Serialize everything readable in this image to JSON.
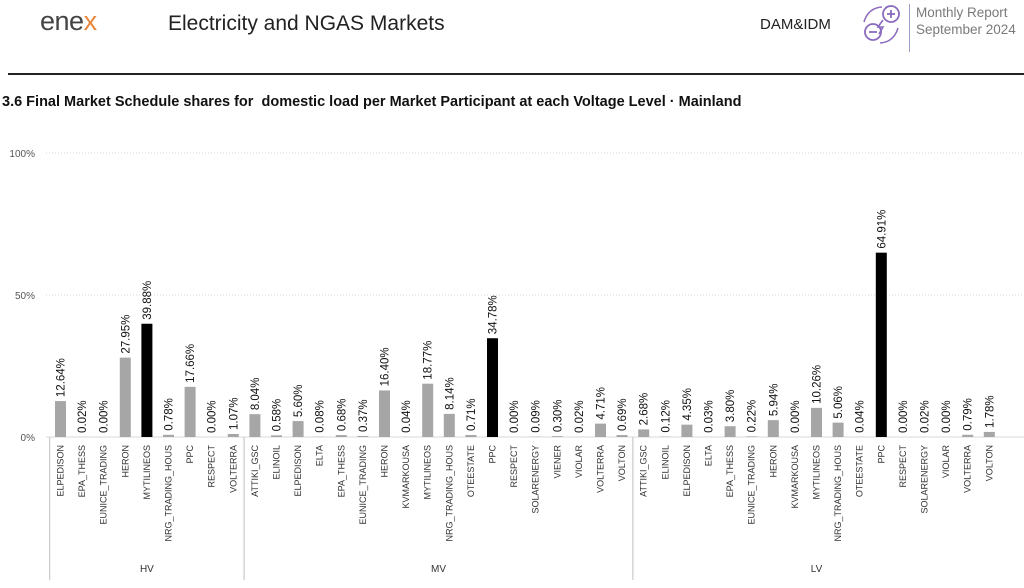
{
  "header": {
    "logo_text": "ene",
    "logo_accent": "x",
    "title": "Electricity and NGAS Markets",
    "market_tag": "DAM&IDM",
    "report_line1": "Monthly Report",
    "report_line2": "September 2024",
    "icon": "plus-minus-lightning-icon"
  },
  "colors": {
    "bar_gray": "#a6a6a6",
    "bar_highlight": "#000000",
    "brand_orange": "#e8863a",
    "icon_purple": "#8b6bbf"
  },
  "chart_data": {
    "type": "bar",
    "title": "3.6 Final Market Schedule shares for  domestic load per Market Participant at each Voltage Level · Mainland",
    "xlabel": "",
    "ylabel": "",
    "ylim": [
      0,
      100
    ],
    "y_ticks": [
      "0%",
      "50%",
      "100%"
    ],
    "grid": true,
    "legend": "none",
    "groups": [
      {
        "name": "HV",
        "categories": [
          "ELPEDISON",
          "EPA_THESS",
          "EUNICE_TRADING",
          "HERON",
          "MYTILINEOS",
          "NRG_TRADING_HOUS",
          "PPC",
          "RESPECT",
          "VOLTERRA"
        ],
        "values": [
          12.64,
          0.02,
          0.0,
          27.95,
          39.88,
          0.78,
          17.66,
          0.0,
          1.07
        ],
        "labels": [
          "12.64%",
          "0.02%",
          "0.00%",
          "27.95%",
          "39.88%",
          "0.78%",
          "17.66%",
          "0.00%",
          "1.07%"
        ],
        "highlight_index": 4
      },
      {
        "name": "MV",
        "categories": [
          "ATTIKI_GSC",
          "ELINOIL",
          "ELPEDISON",
          "ELTA",
          "EPA_THESS",
          "EUNICE_TRADING",
          "HERON",
          "KVMARKOUSA",
          "MYTILINEOS",
          "NRG_TRADING_HOUS",
          "OTEESTATE",
          "PPC",
          "RESPECT",
          "SOLARENERGY",
          "VIENER",
          "VIOLAR",
          "VOLTERRA",
          "VOLTON"
        ],
        "values": [
          8.04,
          0.58,
          5.6,
          0.08,
          0.68,
          0.37,
          16.4,
          0.04,
          18.77,
          8.14,
          0.71,
          34.78,
          0.0,
          0.09,
          0.3,
          0.02,
          4.71,
          0.69
        ],
        "labels": [
          "8.04%",
          "0.58%",
          "5.60%",
          "0.08%",
          "0.68%",
          "0.37%",
          "16.40%",
          "0.04%",
          "18.77%",
          "8.14%",
          "0.71%",
          "34.78%",
          "0.00%",
          "0.09%",
          "0.30%",
          "0.02%",
          "4.71%",
          "0.69%"
        ],
        "highlight_index": 11
      },
      {
        "name": "LV",
        "categories": [
          "ATTIKI_GSC",
          "ELINOIL",
          "ELPEDISON",
          "ELTA",
          "EPA_THESS",
          "EUNICE_TRADING",
          "HERON",
          "KVMARKOUSA",
          "MYTILINEOS",
          "NRG_TRADING_HOUS",
          "OTEESTATE",
          "PPC",
          "RESPECT",
          "SOLARENERGY",
          "VIOLAR",
          "VOLTERRA",
          "VOLTON"
        ],
        "values": [
          2.68,
          0.12,
          4.35,
          0.03,
          3.8,
          0.22,
          5.94,
          0.0,
          10.26,
          5.06,
          0.04,
          64.91,
          0.0,
          0.02,
          0.0,
          0.79,
          1.78
        ],
        "labels": [
          "2.68%",
          "0.12%",
          "4.35%",
          "0.03%",
          "3.80%",
          "0.22%",
          "5.94%",
          "0.00%",
          "10.26%",
          "5.06%",
          "0.04%",
          "64.91%",
          "0.00%",
          "0.02%",
          "0.00%",
          "0.79%",
          "1.78%"
        ],
        "highlight_index": 11
      }
    ]
  }
}
